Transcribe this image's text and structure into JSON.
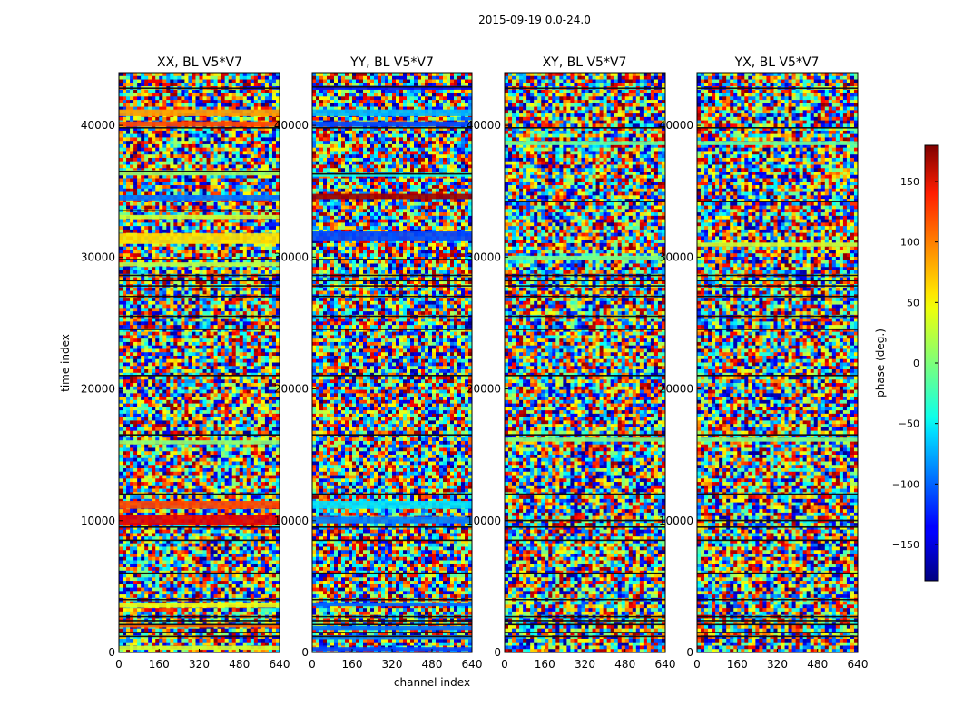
{
  "figure": {
    "suptitle": "2015-09-19 0.0-24.0"
  },
  "chart_data": {
    "type": "heatmap",
    "xlabel": "channel index",
    "ylabel": "time index",
    "xlim": [
      0,
      640
    ],
    "ylim": [
      0,
      44000
    ],
    "xticks": [
      0,
      160,
      320,
      480,
      640
    ],
    "yticks": [
      0,
      10000,
      20000,
      30000,
      40000
    ],
    "panels": [
      {
        "title": "XX, BL V5*V7",
        "dark_rows": [
          1200,
          1500,
          2100,
          2400,
          2700,
          4000,
          6000,
          8500,
          9500,
          12000,
          16500,
          21000,
          24500,
          25500,
          27000,
          27800,
          28200,
          28600,
          29800,
          33500,
          36500,
          39800,
          42800
        ],
        "bands": [
          {
            "y0": 9700,
            "y1": 10400,
            "phase": 145
          },
          {
            "y0": 10900,
            "y1": 11500,
            "phase": 110
          },
          {
            "y0": 3400,
            "y1": 3800,
            "phase": 40
          },
          {
            "y0": 1900,
            "y1": 2100,
            "phase": 100
          },
          {
            "y0": 31000,
            "y1": 31800,
            "phase": 55
          },
          {
            "y0": 34300,
            "y1": 34700,
            "phase": -95
          },
          {
            "y0": 40700,
            "y1": 41200,
            "phase": 80
          },
          {
            "y0": 39900,
            "y1": 40300,
            "phase": 110
          },
          {
            "y0": 36200,
            "y1": 36600,
            "phase": 10
          },
          {
            "y0": 32900,
            "y1": 33200,
            "phase": 25
          },
          {
            "y0": 29300,
            "y1": 29600,
            "phase": 20
          },
          {
            "y0": 15800,
            "y1": 16100,
            "phase": 5
          },
          {
            "y0": 200,
            "y1": 500,
            "phase": 30
          }
        ]
      },
      {
        "title": "YY, BL V5*V7",
        "dark_rows": [
          1200,
          1500,
          2100,
          2400,
          2700,
          4000,
          6000,
          8500,
          9500,
          12000,
          16500,
          21000,
          24500,
          25500,
          27000,
          27800,
          28200,
          28600,
          29800,
          36300,
          39800,
          42900
        ],
        "bands": [
          {
            "y0": 34400,
            "y1": 34800,
            "phase": 170
          },
          {
            "y0": 31200,
            "y1": 32000,
            "phase": -110
          },
          {
            "y0": 42700,
            "y1": 43000,
            "phase": -130
          },
          {
            "y0": 40700,
            "y1": 41200,
            "phase": -70
          },
          {
            "y0": 39900,
            "y1": 40300,
            "phase": -110
          },
          {
            "y0": 10900,
            "y1": 11500,
            "phase": -55
          },
          {
            "y0": 9800,
            "y1": 10300,
            "phase": -90
          },
          {
            "y0": 3500,
            "y1": 3800,
            "phase": -100
          },
          {
            "y0": 1700,
            "y1": 2000,
            "phase": -95
          },
          {
            "y0": 1000,
            "y1": 1300,
            "phase": -90
          },
          {
            "y0": 100,
            "y1": 400,
            "phase": -110
          },
          {
            "y0": 36100,
            "y1": 36400,
            "phase": -40
          }
        ]
      },
      {
        "title": "XY, BL V5*V7",
        "dark_rows": [
          1200,
          1500,
          2100,
          2400,
          2700,
          4000,
          6000,
          8500,
          9500,
          10000,
          12000,
          16500,
          21000,
          24500,
          25500,
          27000,
          27800,
          28200,
          28600,
          34200,
          39800,
          42800
        ],
        "bands": [
          {
            "y0": 16000,
            "y1": 16300,
            "phase": 0
          },
          {
            "y0": 38500,
            "y1": 38800,
            "phase": -10
          },
          {
            "y0": 29800,
            "y1": 30100,
            "phase": -5
          }
        ]
      },
      {
        "title": "YX, BL V5*V7",
        "dark_rows": [
          1200,
          1500,
          2100,
          2400,
          2700,
          4000,
          6000,
          8500,
          9500,
          10000,
          12000,
          16500,
          21000,
          24500,
          25500,
          27000,
          27800,
          28200,
          28600,
          34200,
          39800,
          42800
        ],
        "bands": [
          {
            "y0": 16000,
            "y1": 16300,
            "phase": 0
          },
          {
            "y0": 38500,
            "y1": 38800,
            "phase": -10
          },
          {
            "y0": 30800,
            "y1": 31100,
            "phase": 30
          }
        ]
      }
    ],
    "colorbar": {
      "label": "phase (deg.)",
      "range": [
        -180,
        180
      ],
      "ticks": [
        -150,
        -100,
        -50,
        0,
        50,
        100,
        150
      ],
      "colormap": "jet"
    }
  }
}
